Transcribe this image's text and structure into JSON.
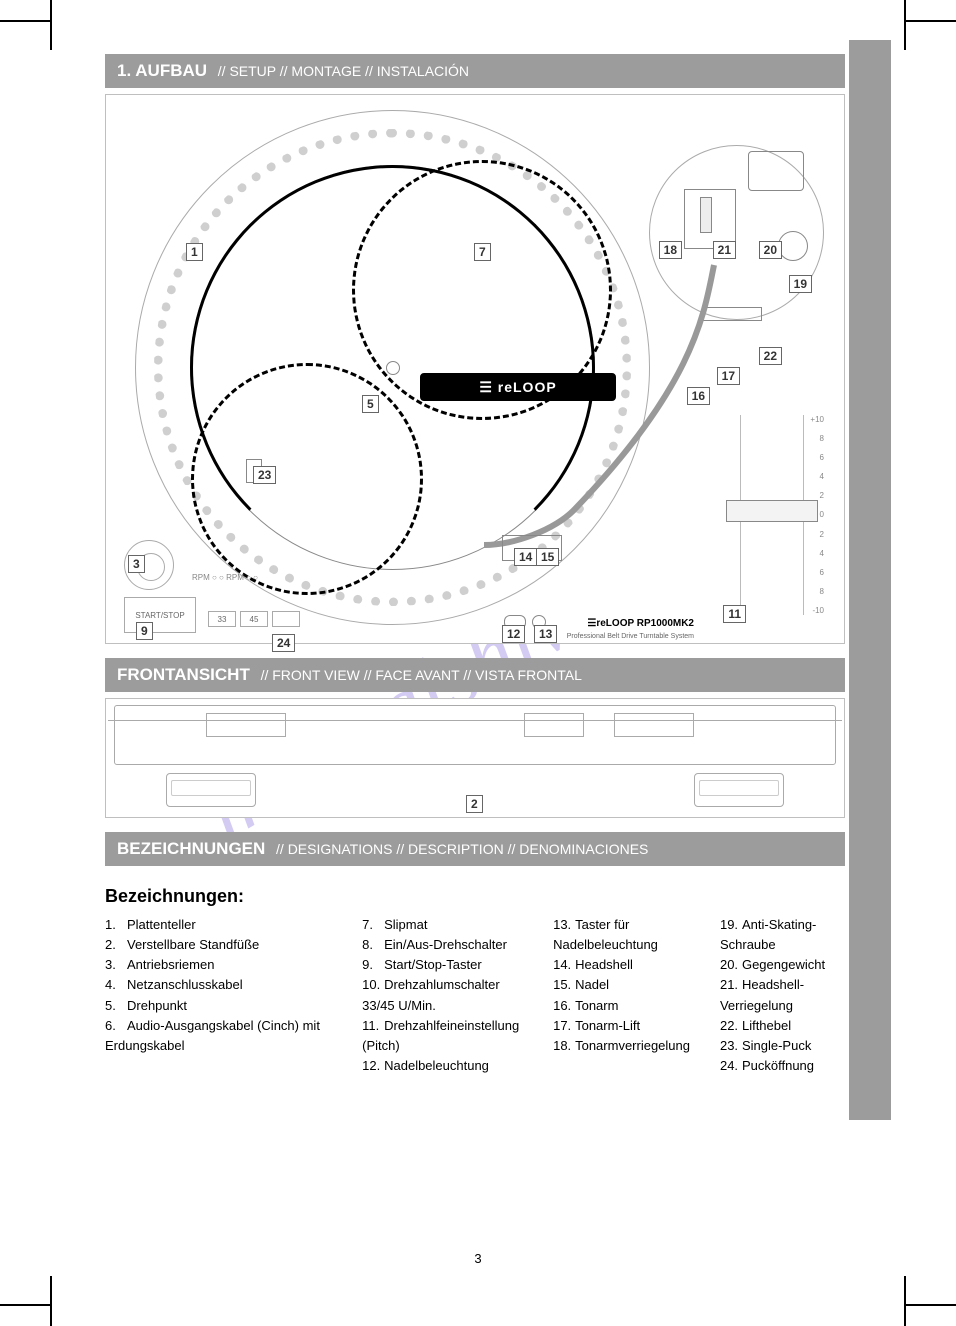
{
  "page_number": "3",
  "watermark": "manualshive.com",
  "headers": {
    "setup": "1. AUFBAU",
    "setup_sub": "// SETUP // MONTAGE // INSTALACIÓN",
    "front": "FRONTANSICHT",
    "front_sub": "// FRONT VIEW // FACE AVANT // VISTA FRONTAL",
    "desc": "BEZEICHNUNGEN",
    "desc_sub": "// DESIGNATIONS // DESCRIPTION // DENOMINACIONES"
  },
  "topview": {
    "logo": "☰ reLOOP",
    "brand": "☰reLOOP RP1000MK2",
    "brand_sub": "Professional Belt Drive Turntable System",
    "startstop": "START/STOP",
    "speeds": [
      "33",
      "45"
    ],
    "leds": "RPM ○ ○\nRPM ○ ○",
    "pitch_marks": [
      "+10",
      "8",
      "6",
      "4",
      "2",
      "0",
      "2",
      "4",
      "6",
      "8",
      "-10"
    ],
    "callouts": {
      "c1": "1",
      "c3": "3",
      "c5": "5",
      "c7": "7",
      "c9": "9",
      "c11": "11",
      "c12": "12",
      "c13": "13",
      "c14": "14",
      "c15": "15",
      "c16": "16",
      "c17": "17",
      "c18": "18",
      "c19": "19",
      "c20": "20",
      "c21": "21",
      "c22": "22",
      "c23": "23",
      "c24": "24"
    }
  },
  "frontview": {
    "callouts": {
      "c2": "2"
    }
  },
  "descriptions": {
    "title_de": "Bezeichnungen:",
    "col1": [
      {
        "n": "1.",
        "t": "Plattenteller"
      },
      {
        "n": "2.",
        "t": "Verstellbare Standfüße"
      },
      {
        "n": "3.",
        "t": "Antriebsriemen"
      },
      {
        "n": "4.",
        "t": "Netzanschlusskabel"
      },
      {
        "n": "5.",
        "t": "Drehpunkt"
      },
      {
        "n": "6.",
        "t": "Audio-Ausgangskabel (Cinch) mit Erdungskabel"
      }
    ],
    "col2": [
      {
        "n": "7.",
        "t": "Slipmat"
      },
      {
        "n": "8.",
        "t": "Ein/Aus-Drehschalter"
      },
      {
        "n": "9.",
        "t": "Start/Stop-Taster"
      },
      {
        "n": "10.",
        "t": "Drehzahlumschalter 33/45 U/Min."
      },
      {
        "n": "11.",
        "t": "Drehzahlfeineinstellung (Pitch)"
      },
      {
        "n": "12.",
        "t": "Nadelbeleuchtung"
      }
    ],
    "col3": [
      {
        "n": "13.",
        "t": "Taster für Nadelbeleuchtung"
      },
      {
        "n": "14.",
        "t": "Headshell"
      },
      {
        "n": "15.",
        "t": "Nadel"
      },
      {
        "n": "16.",
        "t": "Tonarm"
      },
      {
        "n": "17.",
        "t": "Tonarm-Lift"
      },
      {
        "n": "18.",
        "t": "Tonarmverriegelung"
      }
    ],
    "col4": [
      {
        "n": "19.",
        "t": "Anti-Skating-Schraube"
      },
      {
        "n": "20.",
        "t": "Gegengewicht"
      },
      {
        "n": "21.",
        "t": "Headshell-Verriegelung"
      },
      {
        "n": "22.",
        "t": "Lifthebel"
      },
      {
        "n": "23.",
        "t": "Single-Puck"
      },
      {
        "n": "24.",
        "t": "Pucköffnung"
      }
    ]
  }
}
